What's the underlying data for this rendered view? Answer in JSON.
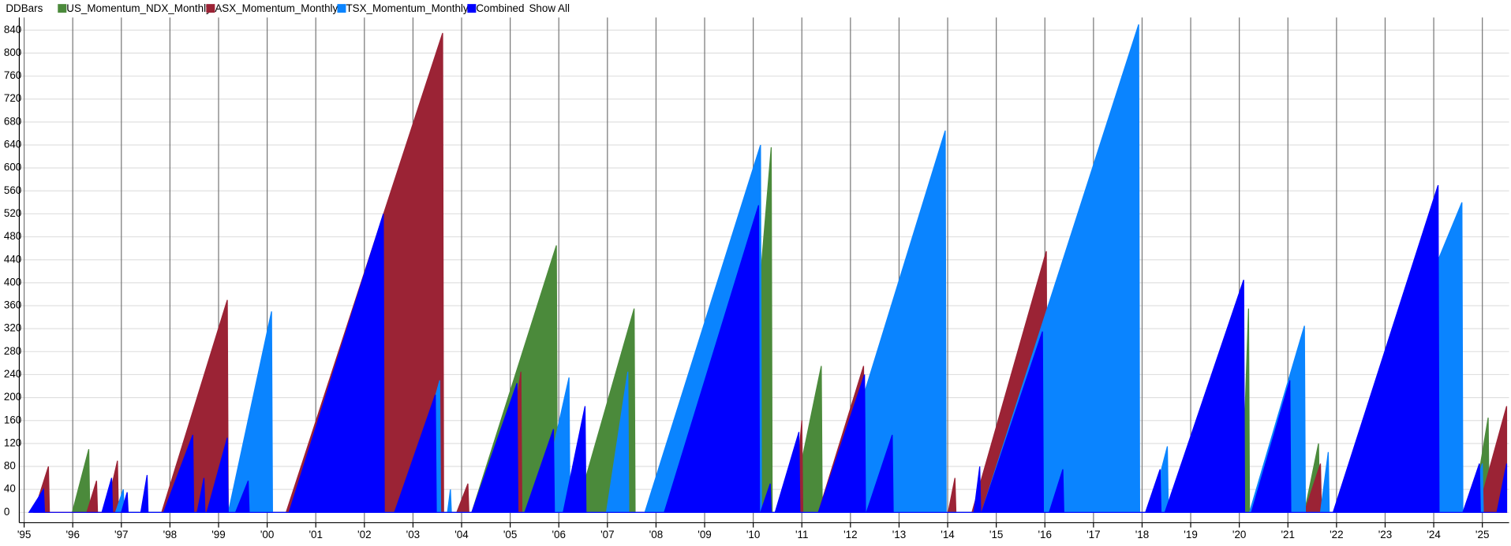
{
  "chart_data": {
    "type": "area",
    "title": "DDBars",
    "show_all_label": "Show All",
    "xlim": [
      1994.9,
      2025.55
    ],
    "ylim": [
      -18,
      862
    ],
    "grid": true,
    "xticks": [
      {
        "value": 1995,
        "label": "'95"
      },
      {
        "value": 1996,
        "label": "'96"
      },
      {
        "value": 1997,
        "label": "'97"
      },
      {
        "value": 1998,
        "label": "'98"
      },
      {
        "value": 1999,
        "label": "'99"
      },
      {
        "value": 2000,
        "label": "'00"
      },
      {
        "value": 2001,
        "label": "'01"
      },
      {
        "value": 2002,
        "label": "'02"
      },
      {
        "value": 2003,
        "label": "'03"
      },
      {
        "value": 2004,
        "label": "'04"
      },
      {
        "value": 2005,
        "label": "'05"
      },
      {
        "value": 2006,
        "label": "'06"
      },
      {
        "value": 2007,
        "label": "'07"
      },
      {
        "value": 2008,
        "label": "'08"
      },
      {
        "value": 2009,
        "label": "'09"
      },
      {
        "value": 2010,
        "label": "'10"
      },
      {
        "value": 2011,
        "label": "'11"
      },
      {
        "value": 2012,
        "label": "'12"
      },
      {
        "value": 2013,
        "label": "'13"
      },
      {
        "value": 2014,
        "label": "'14"
      },
      {
        "value": 2015,
        "label": "'15"
      },
      {
        "value": 2016,
        "label": "'16"
      },
      {
        "value": 2017,
        "label": "'17"
      },
      {
        "value": 2018,
        "label": "'18"
      },
      {
        "value": 2019,
        "label": "'19"
      },
      {
        "value": 2020,
        "label": "'20"
      },
      {
        "value": 2021,
        "label": "'21"
      },
      {
        "value": 2022,
        "label": "'22"
      },
      {
        "value": 2023,
        "label": "'23"
      },
      {
        "value": 2024,
        "label": "'24"
      },
      {
        "value": 2025,
        "label": "'25"
      }
    ],
    "yticks": [
      0,
      40,
      80,
      120,
      160,
      200,
      240,
      280,
      320,
      360,
      400,
      440,
      480,
      520,
      560,
      600,
      640,
      680,
      720,
      760,
      800,
      840
    ],
    "series": [
      {
        "name": "US_Momentum_NDX_Monthly",
        "color": "#4b8a3b",
        "x": [
          1995.99,
          1996.33,
          1996.35,
          2004.21,
          2005.95,
          2005.97,
          2006.35,
          2007.55,
          2007.57,
          2009.75,
          2010.37,
          2010.39,
          2010.78,
          2011.4,
          2011.42,
          2020.05,
          2020.19,
          2020.21,
          2021.34,
          2021.63,
          2021.65,
          2024.8,
          2025.12,
          2025.14
        ],
        "values": [
          0,
          110,
          0,
          0,
          465,
          0,
          0,
          355,
          0,
          0,
          636,
          0,
          0,
          255,
          0,
          0,
          355,
          0,
          0,
          120,
          0,
          0,
          165,
          0
        ]
      },
      {
        "name": "ASX_Momentum_Monthly",
        "color": "#9b2335",
        "x": [
          1995.2,
          1995.5,
          1995.52,
          1996.29,
          1996.49,
          1996.51,
          1996.68,
          1996.92,
          1996.94,
          1997.83,
          1999.18,
          1999.2,
          2000.39,
          2003.61,
          2003.63,
          2003.9,
          2004.13,
          2004.15,
          2004.8,
          2005.22,
          2005.24,
          2010.84,
          2011.0,
          2011.02,
          2011.34,
          2012.27,
          2012.29,
          2014.01,
          2014.15,
          2014.17,
          2014.5,
          2016.03,
          2016.05,
          2021.34,
          2021.67,
          2021.69,
          2024.9,
          2025.5
        ],
        "values": [
          0,
          80,
          0,
          0,
          55,
          0,
          0,
          90,
          0,
          0,
          370,
          0,
          0,
          835,
          0,
          0,
          50,
          0,
          0,
          245,
          0,
          0,
          160,
          0,
          0,
          255,
          0,
          0,
          60,
          0,
          0,
          455,
          0,
          0,
          85,
          0,
          0,
          185
        ]
      },
      {
        "name": "TSX_Momentum_Monthly",
        "color": "#0a84ff",
        "x": [
          1996.88,
          1997.04,
          1997.06,
          1999.2,
          2000.09,
          2000.11,
          2002.82,
          2003.55,
          2003.57,
          2003.71,
          2003.77,
          2003.79,
          2005.59,
          2006.21,
          2006.23,
          2006.98,
          2007.42,
          2007.44,
          2007.77,
          2010.15,
          2010.17,
          2011.53,
          2013.95,
          2013.97,
          2014.7,
          2017.93,
          2017.95,
          2018.17,
          2018.52,
          2018.54,
          2020.21,
          2021.34,
          2021.36,
          2021.67,
          2021.83,
          2021.85,
          2021.95,
          2024.58,
          2024.6,
          2024.72,
          2025.0,
          2025.02
        ],
        "values": [
          0,
          40,
          0,
          0,
          350,
          0,
          0,
          230,
          0,
          0,
          40,
          0,
          0,
          235,
          0,
          0,
          245,
          0,
          0,
          640,
          0,
          0,
          665,
          0,
          0,
          850,
          0,
          0,
          115,
          0,
          0,
          325,
          0,
          0,
          105,
          0,
          0,
          540,
          0,
          0,
          85,
          0
        ]
      },
      {
        "name": "Combined",
        "color": "#0000ff",
        "x": [
          1995.1,
          1995.4,
          1995.42,
          1996.6,
          1996.8,
          1996.82,
          1997.0,
          1997.12,
          1997.14,
          1997.4,
          1997.53,
          1997.55,
          1997.87,
          1998.47,
          1998.49,
          1998.56,
          1998.7,
          1998.72,
          1998.76,
          1999.18,
          1999.2,
          1999.35,
          1999.61,
          1999.63,
          2000.45,
          2002.39,
          2002.41,
          2002.62,
          2003.46,
          2003.48,
          2004.21,
          2005.14,
          2005.16,
          2005.3,
          2005.89,
          2005.91,
          2006.09,
          2006.54,
          2006.56,
          2008.17,
          2010.11,
          2010.13,
          2010.15,
          2010.35,
          2010.37,
          2010.45,
          2010.94,
          2010.96,
          2011.34,
          2012.29,
          2012.31,
          2012.33,
          2012.86,
          2012.88,
          2014.54,
          2014.66,
          2014.68,
          2014.7,
          2015.95,
          2015.97,
          2016.09,
          2016.37,
          2016.39,
          2018.07,
          2018.37,
          2018.39,
          2018.47,
          2020.09,
          2020.11,
          2020.25,
          2021.04,
          2021.06,
          2021.93,
          2024.09,
          2024.11,
          2024.6,
          2024.94,
          2024.96,
          2025.3,
          2025.5
        ],
        "values": [
          0,
          40,
          0,
          0,
          60,
          0,
          0,
          35,
          0,
          0,
          65,
          0,
          0,
          135,
          0,
          0,
          60,
          0,
          0,
          130,
          0,
          0,
          55,
          0,
          0,
          520,
          0,
          0,
          205,
          0,
          0,
          225,
          0,
          0,
          145,
          0,
          0,
          185,
          0,
          0,
          535,
          0,
          0,
          50,
          0,
          0,
          140,
          0,
          0,
          240,
          0,
          0,
          135,
          0,
          0,
          80,
          0,
          0,
          315,
          0,
          0,
          75,
          0,
          0,
          75,
          0,
          0,
          405,
          0,
          0,
          230,
          0,
          0,
          570,
          0,
          0,
          85,
          0,
          0,
          85
        ]
      }
    ]
  }
}
